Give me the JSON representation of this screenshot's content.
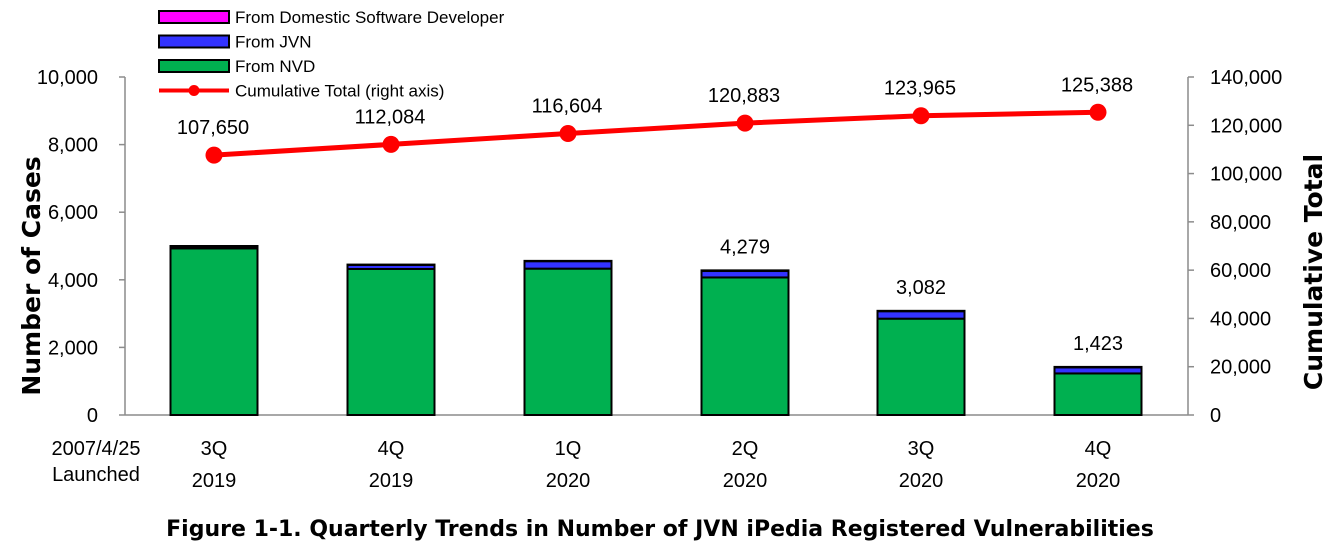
{
  "chart_data": {
    "type": "bar",
    "title": "Figure 1-1. Quarterly Trends in Number of JVN iPedia Registered Vulnerabilities",
    "ylabel": "Number of Cases",
    "y2label": "Cumulative Total",
    "ylim": [
      0,
      10000
    ],
    "y2lim": [
      0,
      140000
    ],
    "y_ticks": [
      "0",
      "2,000",
      "4,000",
      "6,000",
      "8,000",
      "10,000"
    ],
    "y2_ticks": [
      "0",
      "20,000",
      "40,000",
      "60,000",
      "80,000",
      "100,000",
      "120,000",
      "140,000"
    ],
    "pre_label": [
      "2007/4/25",
      "Launched"
    ],
    "categories": [
      [
        "3Q",
        "2019"
      ],
      [
        "4Q",
        "2019"
      ],
      [
        "1Q",
        "2020"
      ],
      [
        "2Q",
        "2020"
      ],
      [
        "3Q",
        "2020"
      ],
      [
        "4Q",
        "2020"
      ]
    ],
    "series": [
      {
        "name": "From NVD",
        "kind": "bar",
        "color": "#00b050",
        "values": [
          4930,
          4320,
          4330,
          4070,
          2850,
          1230
        ]
      },
      {
        "name": "From JVN",
        "kind": "bar",
        "color": "#3333ff",
        "values": [
          60,
          120,
          220,
          190,
          220,
          180
        ]
      },
      {
        "name": "From Domestic Software Developer",
        "kind": "bar",
        "color": "#ff00ff",
        "values": [
          10,
          10,
          10,
          19,
          12,
          13
        ]
      },
      {
        "name": "Cumulative Total (right axis)",
        "kind": "line",
        "axis": "right",
        "color": "#ff0000",
        "values": [
          107650,
          112084,
          116604,
          120883,
          123965,
          125388
        ]
      }
    ],
    "bar_labels": [
      "",
      "",
      "",
      "4,279",
      "3,082",
      "1,423"
    ],
    "line_labels": [
      "107,650",
      "112,084",
      "116,604",
      "120,883",
      "123,965",
      "125,388"
    ],
    "legend": [
      {
        "label": "From Domestic Software Developer",
        "color": "#ff00ff",
        "kind": "bar"
      },
      {
        "label": "From JVN",
        "color": "#3333ff",
        "kind": "bar"
      },
      {
        "label": "From NVD",
        "color": "#00b050",
        "kind": "bar"
      },
      {
        "label": "Cumulative Total (right axis)",
        "color": "#ff0000",
        "kind": "line"
      }
    ],
    "legend_position": "top-left",
    "grid": false
  }
}
